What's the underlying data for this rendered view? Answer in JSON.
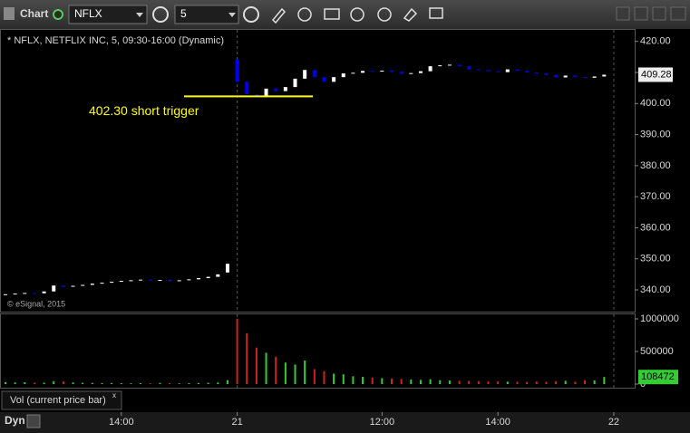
{
  "toolbar": {
    "title": "Chart",
    "symbol": "NFLX",
    "interval": "5"
  },
  "footer": {
    "mode": "Dyn"
  },
  "chart_data": [
    {
      "type": "candlestick",
      "title": "* NFLX, NETFLIX INC, 5, 09:30-16:00 (Dynamic)",
      "copyright": "© eSignal, 2015",
      "open": [
        338.4,
        338.6,
        338.8,
        339.0,
        338.9,
        339.5,
        341.4,
        341.0,
        341.3,
        341.6,
        342.0,
        342.3,
        342.6,
        342.9,
        343.1,
        343.3,
        343.0,
        343.2,
        342.8,
        343.1,
        343.4,
        343.8,
        344.2,
        345.6,
        414.2,
        407.0,
        403.0,
        402.5,
        404.8,
        404.0,
        405.3,
        408.0,
        410.8,
        408.5,
        407.0,
        408.5,
        409.7,
        409.9,
        410.5,
        410.3,
        410.6,
        410.2,
        409.6,
        409.8,
        410.4,
        412.0,
        412.3,
        412.5,
        412.0,
        411.0,
        410.8,
        410.4,
        410.1,
        411.0,
        410.5,
        410.0,
        409.7,
        409.2,
        408.4,
        409.0,
        408.5,
        408.3,
        408.7
      ],
      "close": [
        338.6,
        338.8,
        339.0,
        338.9,
        339.5,
        341.4,
        341.0,
        341.3,
        341.6,
        342.0,
        342.3,
        342.6,
        342.9,
        343.1,
        343.3,
        343.0,
        343.2,
        342.8,
        343.1,
        343.4,
        343.8,
        344.2,
        345.0,
        348.4,
        407.0,
        403.0,
        402.5,
        404.8,
        404.0,
        405.3,
        408.0,
        410.8,
        408.5,
        407.0,
        408.5,
        409.7,
        409.9,
        410.5,
        410.3,
        410.6,
        410.2,
        409.6,
        409.8,
        410.4,
        412.0,
        412.3,
        412.5,
        412.0,
        411.0,
        410.8,
        410.4,
        410.1,
        411.0,
        410.5,
        410.0,
        409.7,
        409.2,
        408.4,
        409.0,
        408.5,
        408.3,
        408.7,
        409.28
      ],
      "up_color": "#ffffff",
      "down_color": "#0000ee",
      "ylim": [
        333,
        424
      ],
      "yticks": [
        {
          "value": 340,
          "label": "340.00"
        },
        {
          "value": 350,
          "label": "350.00"
        },
        {
          "value": 360,
          "label": "360.00"
        },
        {
          "value": 370,
          "label": "370.00"
        },
        {
          "value": 380,
          "label": "380.00"
        },
        {
          "value": 390,
          "label": "390.00"
        },
        {
          "value": 400,
          "label": "400.00"
        },
        {
          "value": 410,
          "label": "410.00"
        },
        {
          "value": 420,
          "label": "420.00"
        }
      ],
      "xticks": [
        {
          "value": 12,
          "label": "14:00"
        },
        {
          "value": 24,
          "label": "21"
        },
        {
          "value": 39,
          "label": "12:00"
        },
        {
          "value": 51,
          "label": "14:00"
        },
        {
          "value": 63,
          "label": "22"
        }
      ],
      "annotation": {
        "value": 402.3,
        "text": "402.30 short trigger",
        "color": "#ffff00"
      }
    },
    {
      "type": "bar",
      "title": "Vol (current price bar)",
      "values": [
        30000,
        25000,
        28000,
        20000,
        22000,
        45000,
        40000,
        25000,
        20000,
        18000,
        15000,
        16000,
        14000,
        12000,
        15000,
        13000,
        18000,
        15000,
        12000,
        14000,
        16000,
        20000,
        25000,
        60000,
        1000000,
        780000,
        560000,
        480000,
        420000,
        330000,
        300000,
        360000,
        230000,
        200000,
        160000,
        150000,
        120000,
        110000,
        100000,
        90000,
        85000,
        80000,
        70000,
        65000,
        75000,
        60000,
        55000,
        50000,
        48000,
        45000,
        40000,
        42000,
        38000,
        36000,
        34000,
        40000,
        35000,
        45000,
        50000,
        38000,
        60000,
        55000,
        108472
      ],
      "up_color": "#33cc33",
      "down_color": "#cc2222",
      "ylim": [
        0,
        1050000
      ],
      "yticks": [
        0,
        500000,
        1000000
      ]
    }
  ]
}
